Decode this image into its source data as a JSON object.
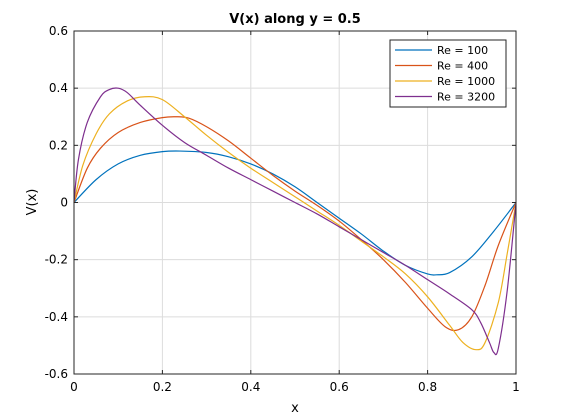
{
  "chart_data": {
    "type": "line",
    "title": "V(x) along y = 0.5",
    "xlabel": "x",
    "ylabel": "V(x)",
    "xlim": [
      0,
      1
    ],
    "ylim": [
      -0.6,
      0.6
    ],
    "xticks": [
      "0",
      "0.2",
      "0.4",
      "0.6",
      "0.8",
      "1"
    ],
    "yticks": [
      "0.6",
      "0.4",
      "0.2",
      "0",
      "-0.2",
      "-0.4",
      "-0.6"
    ],
    "grid": true,
    "legend_position": "top-right",
    "series": [
      {
        "name": "Re = 100",
        "color": "#0072bd",
        "x": [
          0,
          0.05,
          0.1,
          0.15,
          0.2,
          0.24,
          0.3,
          0.35,
          0.4,
          0.45,
          0.5,
          0.55,
          0.6,
          0.65,
          0.7,
          0.75,
          0.8,
          0.82,
          0.85,
          0.9,
          0.95,
          1.0
        ],
        "y": [
          0,
          0.08,
          0.135,
          0.165,
          0.178,
          0.18,
          0.175,
          0.16,
          0.135,
          0.1,
          0.055,
          0.0,
          -0.055,
          -0.11,
          -0.17,
          -0.22,
          -0.25,
          -0.253,
          -0.245,
          -0.19,
          -0.1,
          0
        ]
      },
      {
        "name": "Re = 400",
        "color": "#d95319",
        "x": [
          0,
          0.03,
          0.06,
          0.1,
          0.15,
          0.2,
          0.23,
          0.26,
          0.3,
          0.35,
          0.4,
          0.45,
          0.5,
          0.55,
          0.6,
          0.65,
          0.7,
          0.75,
          0.8,
          0.84,
          0.87,
          0.9,
          0.93,
          0.96,
          1.0
        ],
        "y": [
          0,
          0.12,
          0.19,
          0.245,
          0.28,
          0.297,
          0.3,
          0.295,
          0.265,
          0.215,
          0.155,
          0.095,
          0.04,
          -0.01,
          -0.065,
          -0.13,
          -0.2,
          -0.28,
          -0.37,
          -0.435,
          -0.445,
          -0.4,
          -0.29,
          -0.15,
          0
        ]
      },
      {
        "name": "Re = 1000",
        "color": "#edb120",
        "x": [
          0,
          0.02,
          0.05,
          0.08,
          0.12,
          0.16,
          0.2,
          0.25,
          0.3,
          0.35,
          0.4,
          0.45,
          0.5,
          0.55,
          0.6,
          0.65,
          0.7,
          0.75,
          0.8,
          0.85,
          0.88,
          0.91,
          0.93,
          0.96,
          0.98,
          1.0
        ],
        "y": [
          0,
          0.13,
          0.24,
          0.31,
          0.355,
          0.37,
          0.36,
          0.3,
          0.235,
          0.175,
          0.12,
          0.07,
          0.02,
          -0.03,
          -0.08,
          -0.135,
          -0.19,
          -0.25,
          -0.33,
          -0.43,
          -0.49,
          -0.515,
          -0.49,
          -0.35,
          -0.18,
          0
        ]
      },
      {
        "name": "Re = 3200",
        "color": "#7e2f8e",
        "x": [
          0,
          0.01,
          0.03,
          0.06,
          0.08,
          0.1,
          0.12,
          0.15,
          0.2,
          0.25,
          0.3,
          0.35,
          0.4,
          0.45,
          0.5,
          0.55,
          0.6,
          0.65,
          0.7,
          0.75,
          0.8,
          0.85,
          0.9,
          0.92,
          0.94,
          0.95,
          0.96,
          0.98,
          1.0
        ],
        "y": [
          0,
          0.15,
          0.28,
          0.37,
          0.395,
          0.4,
          0.385,
          0.34,
          0.27,
          0.21,
          0.165,
          0.12,
          0.08,
          0.04,
          0.0,
          -0.04,
          -0.085,
          -0.13,
          -0.175,
          -0.22,
          -0.27,
          -0.32,
          -0.375,
          -0.42,
          -0.49,
          -0.525,
          -0.51,
          -0.31,
          0
        ]
      }
    ]
  }
}
